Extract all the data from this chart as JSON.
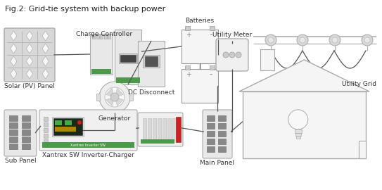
{
  "title": "Fig.2: Grid-tie system with backup power",
  "title_fontsize": 8,
  "bg_color": "#ffffff",
  "fig_width": 5.43,
  "fig_height": 2.7,
  "labels": {
    "solar": "Solar (PV) Panel",
    "charge_ctrl": "Charge Controller",
    "batteries": "Batteries",
    "utility_meter": "Utility Meter",
    "utility_grid": "Utility Grid",
    "generator": "Generator",
    "dc_disconnect": "DC Disconnect",
    "sub_panel": "Sub Panel",
    "inverter": "Xantrex SW Inverter-Charger",
    "main_panel": "Main Panel"
  },
  "colors": {
    "line": "#555555",
    "green_stripe": "#4a9a4a",
    "red_accent": "#cc2222",
    "box_fill": "#eeeeee",
    "box_edge": "#aaaaaa",
    "dark_fill": "#333333",
    "panel_fill": "#e0e0e0",
    "battery_fill": "#f5f5f5",
    "white": "#ffffff"
  }
}
